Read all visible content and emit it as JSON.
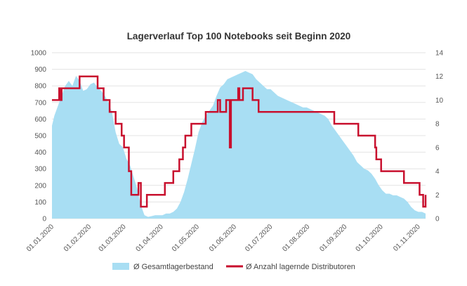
{
  "chart_data": {
    "type": "area+line",
    "title": "Lagerverlauf Top 100 Notebooks seit Beginn 2020",
    "x_tick_labels": [
      "01.01.2020",
      "01.02.2020",
      "01.03.2020",
      "01.04.2020",
      "01.05.2020",
      "01.06.2020",
      "01.07.2020",
      "01.08.2020",
      "01.09.2020",
      "01.10.2020",
      "01.11.2020"
    ],
    "x_range_days": [
      0,
      311
    ],
    "y_left": {
      "range": [
        0,
        1000
      ],
      "ticks": [
        0,
        100,
        200,
        300,
        400,
        500,
        600,
        700,
        800,
        900,
        1000
      ]
    },
    "y_right": {
      "range": [
        0,
        14
      ],
      "ticks": [
        0,
        2,
        4,
        6,
        8,
        10,
        12,
        14
      ]
    },
    "grid": true,
    "legend_position": "bottom",
    "series": [
      {
        "name": "Ø Gesamtlagerbestand",
        "kind": "area",
        "axis": "left",
        "color": "#a8def3",
        "x": [
          "2020-01-01",
          "2020-01-03",
          "2020-01-06",
          "2020-01-09",
          "2020-01-12",
          "2020-01-15",
          "2020-01-18",
          "2020-01-21",
          "2020-01-24",
          "2020-01-27",
          "2020-01-30",
          "2020-02-02",
          "2020-02-05",
          "2020-02-08",
          "2020-02-11",
          "2020-02-14",
          "2020-02-17",
          "2020-02-20",
          "2020-02-23",
          "2020-02-26",
          "2020-02-29",
          "2020-03-03",
          "2020-03-06",
          "2020-03-09",
          "2020-03-12",
          "2020-03-15",
          "2020-03-18",
          "2020-03-21",
          "2020-03-24",
          "2020-03-27",
          "2020-03-30",
          "2020-04-02",
          "2020-04-05",
          "2020-04-08",
          "2020-04-11",
          "2020-04-14",
          "2020-04-17",
          "2020-04-20",
          "2020-04-23",
          "2020-04-26",
          "2020-04-29",
          "2020-05-02",
          "2020-05-05",
          "2020-05-08",
          "2020-05-11",
          "2020-05-14",
          "2020-05-17",
          "2020-05-20",
          "2020-05-23",
          "2020-05-26",
          "2020-05-29",
          "2020-06-01",
          "2020-06-04",
          "2020-06-07",
          "2020-06-10",
          "2020-06-13",
          "2020-06-16",
          "2020-06-19",
          "2020-06-22",
          "2020-06-25",
          "2020-06-28",
          "2020-07-01",
          "2020-07-04",
          "2020-07-07",
          "2020-07-10",
          "2020-07-13",
          "2020-07-16",
          "2020-07-19",
          "2020-07-22",
          "2020-07-25",
          "2020-07-28",
          "2020-07-31",
          "2020-08-03",
          "2020-08-06",
          "2020-08-09",
          "2020-08-12",
          "2020-08-15",
          "2020-08-18",
          "2020-08-21",
          "2020-08-24",
          "2020-08-27",
          "2020-08-30",
          "2020-09-02",
          "2020-09-05",
          "2020-09-08",
          "2020-09-11",
          "2020-09-14",
          "2020-09-17",
          "2020-09-20",
          "2020-09-23",
          "2020-09-26",
          "2020-09-29",
          "2020-10-02",
          "2020-10-05",
          "2020-10-08",
          "2020-10-11",
          "2020-10-14",
          "2020-10-17",
          "2020-10-20",
          "2020-10-23",
          "2020-10-26",
          "2020-10-29",
          "2020-11-01",
          "2020-11-04",
          "2020-11-07"
        ],
        "values": [
          560,
          620,
          680,
          740,
          800,
          830,
          800,
          860,
          830,
          770,
          780,
          810,
          820,
          790,
          770,
          740,
          700,
          640,
          520,
          450,
          430,
          360,
          320,
          250,
          180,
          80,
          20,
          10,
          15,
          20,
          20,
          20,
          30,
          30,
          40,
          60,
          100,
          160,
          240,
          330,
          420,
          520,
          580,
          620,
          650,
          680,
          740,
          790,
          810,
          840,
          850,
          860,
          870,
          880,
          890,
          880,
          870,
          840,
          820,
          800,
          780,
          780,
          760,
          740,
          730,
          720,
          710,
          700,
          690,
          680,
          670,
          670,
          660,
          650,
          640,
          630,
          620,
          600,
          560,
          530,
          500,
          470,
          440,
          410,
          380,
          340,
          320,
          300,
          290,
          270,
          240,
          200,
          170,
          150,
          150,
          140,
          140,
          130,
          120,
          100,
          70,
          50,
          40,
          40,
          30
        ]
      },
      {
        "name": "Ø Anzahl lagernde Distributoren",
        "kind": "step-line",
        "axis": "right",
        "color": "#c8102e",
        "x": [
          "2020-01-01",
          "2020-01-06",
          "2020-01-07",
          "2020-01-08",
          "2020-01-09",
          "2020-01-10",
          "2020-01-12",
          "2020-01-24",
          "2020-02-08",
          "2020-02-13",
          "2020-02-18",
          "2020-02-23",
          "2020-02-28",
          "2020-03-01",
          "2020-03-05",
          "2020-03-07",
          "2020-03-09",
          "2020-03-11",
          "2020-03-13",
          "2020-03-15",
          "2020-03-18",
          "2020-03-20",
          "2020-03-21",
          "2020-03-22",
          "2020-03-25",
          "2020-04-04",
          "2020-04-11",
          "2020-04-16",
          "2020-04-19",
          "2020-04-21",
          "2020-04-26",
          "2020-05-08",
          "2020-05-18",
          "2020-05-20",
          "2020-05-25",
          "2020-05-27",
          "2020-05-28",
          "2020-05-29",
          "2020-05-30",
          "2020-06-04",
          "2020-06-05",
          "2020-06-06",
          "2020-06-08",
          "2020-06-10",
          "2020-06-14",
          "2020-06-16",
          "2020-06-21",
          "2020-06-27",
          "2020-06-30",
          "2020-07-04",
          "2020-07-23",
          "2020-08-07",
          "2020-08-23",
          "2020-09-12",
          "2020-09-17",
          "2020-09-26",
          "2020-09-27",
          "2020-09-29",
          "2020-10-01",
          "2020-10-07",
          "2020-10-20",
          "2020-11-02",
          "2020-11-04",
          "2020-11-05",
          "2020-11-07"
        ],
        "values": [
          10,
          10,
          11,
          10,
          11,
          11,
          11,
          12,
          11,
          10,
          9,
          8,
          7,
          6,
          4,
          2,
          2,
          2,
          3,
          1,
          1,
          2,
          2,
          2,
          2,
          3,
          4,
          5,
          6,
          7,
          8,
          9,
          10,
          9,
          10,
          10,
          6,
          10,
          10,
          11,
          10,
          10,
          11,
          11,
          11,
          10,
          9,
          9,
          9,
          9,
          9,
          9,
          8,
          7,
          7,
          6,
          5,
          5,
          4,
          4,
          3,
          2,
          2,
          1,
          2
        ]
      }
    ]
  }
}
